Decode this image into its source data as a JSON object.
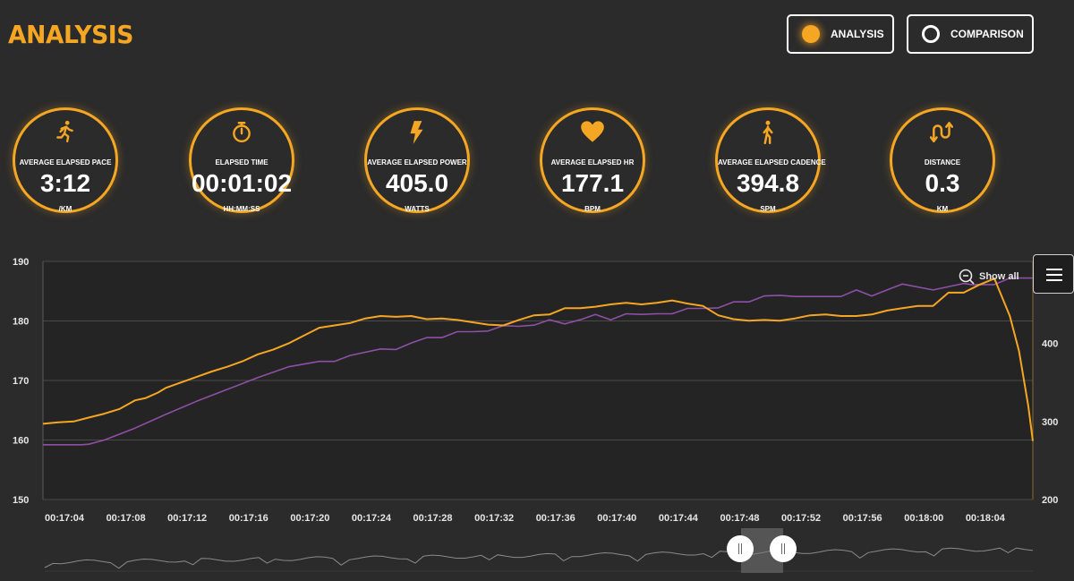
{
  "header": {
    "title": "ANALYSIS",
    "buttons": [
      {
        "label": "ANALYSIS",
        "selected": true
      },
      {
        "label": "COMPARISON",
        "selected": false
      }
    ]
  },
  "stats": [
    {
      "icon": "runner-icon",
      "label": "AVERAGE ELAPSED PACE",
      "value": "3:12",
      "unit": "/KM"
    },
    {
      "icon": "stopwatch-icon",
      "label": "ELAPSED TIME",
      "value": "00:01:02",
      "unit": "HH:MM:SS"
    },
    {
      "icon": "lightning-icon",
      "label": "AVERAGE ELAPSED POWER",
      "value": "405.0",
      "unit": "WATTS"
    },
    {
      "icon": "heart-icon",
      "label": "AVERAGE ELAPSED HR",
      "value": "177.1",
      "unit": "BPM"
    },
    {
      "icon": "walker-icon",
      "label": "AVERAGE ELAPSED CADENCE",
      "value": "394.8",
      "unit": "SPM"
    },
    {
      "icon": "route-icon",
      "label": "DISTANCE",
      "value": "0.3",
      "unit": "KM"
    }
  ],
  "colors": {
    "accent": "#f5a623",
    "hr_series": "#8e4fa6",
    "power_series": "#f5a623",
    "background": "#2b2b2b"
  },
  "chart": {
    "show_all_label": "Show all",
    "menu_icon": "hamburger-icon"
  },
  "chart_data": {
    "type": "line",
    "x_ticks": [
      "00:17:04",
      "00:17:08",
      "00:17:12",
      "00:17:16",
      "00:17:20",
      "00:17:24",
      "00:17:28",
      "00:17:32",
      "00:17:36",
      "00:17:40",
      "00:17:44",
      "00:17:48",
      "00:17:52",
      "00:17:56",
      "00:18:00",
      "00:18:04"
    ],
    "x_range": [
      62.0,
      126.5
    ],
    "y_left": {
      "range": [
        150,
        190
      ],
      "ticks": [
        "150",
        "160",
        "170",
        "180",
        "190"
      ]
    },
    "y_right": {
      "range": [
        200,
        505
      ],
      "ticks": [
        "200",
        "300",
        "400"
      ]
    },
    "grid": true,
    "series": [
      {
        "axis": "left",
        "color": "#8e4fa6",
        "x": [
          62,
          64.5,
          65,
          66,
          68,
          70,
          72,
          74,
          76,
          78,
          80,
          81,
          82,
          84,
          85,
          86,
          87,
          88,
          89,
          90,
          91,
          92,
          93,
          94,
          95,
          96,
          97,
          98,
          99,
          100,
          101,
          102,
          103,
          104,
          105,
          106,
          107,
          108,
          109,
          110,
          111,
          112,
          113,
          114,
          115,
          116,
          117,
          118,
          120,
          122,
          122.5,
          123,
          124,
          125,
          126.5
        ],
        "y": [
          159.2,
          159.2,
          159.3,
          160,
          162,
          164.3,
          166.5,
          168.5,
          170.5,
          172.3,
          173.2,
          173.2,
          174.2,
          175.3,
          175.2,
          176.3,
          177.2,
          177.2,
          178.2,
          178.2,
          178.3,
          179.2,
          179.1,
          179.3,
          180.2,
          179.5,
          180.2,
          181.1,
          180.2,
          181.2,
          181.1,
          181.2,
          181.2,
          182.1,
          182.1,
          182.2,
          183.2,
          183.2,
          184.2,
          184.3,
          184.1,
          184.1,
          184.1,
          184.1,
          185.2,
          184.2,
          185.2,
          186.2,
          185.2,
          186.3,
          186.1,
          186.1,
          186.1,
          187.2,
          187.2
        ]
      },
      {
        "axis": "right",
        "color": "#f5a623",
        "x": [
          62,
          63,
          64,
          65,
          66,
          67,
          68,
          68.7,
          69.5,
          70,
          71,
          72,
          73,
          74,
          75,
          76,
          77,
          78,
          79,
          80,
          81,
          82,
          83,
          84,
          85,
          86,
          87,
          88,
          89,
          90,
          91,
          92,
          93,
          94,
          95,
          96,
          97,
          98,
          99,
          100,
          101,
          102,
          103,
          104,
          105,
          106,
          107,
          108,
          109,
          110,
          111,
          112,
          113,
          114,
          115,
          116,
          117,
          118,
          119,
          120,
          121,
          122,
          123,
          124,
          125,
          125.6,
          126.2,
          126.5
        ],
        "y": [
          297,
          299,
          300,
          305,
          310,
          316,
          327,
          330,
          337,
          343,
          350,
          357,
          364,
          370,
          377,
          386,
          392,
          400,
          410,
          420,
          423,
          426,
          432,
          435,
          434,
          435,
          431,
          432,
          430,
          427,
          424,
          423,
          430,
          436,
          437,
          445,
          445,
          447,
          450,
          452,
          450,
          452,
          455,
          451,
          448,
          436,
          431,
          429,
          430,
          429,
          432,
          436,
          437,
          435,
          435,
          437,
          442,
          445,
          448,
          448,
          465,
          465,
          475,
          483,
          435,
          390,
          320,
          275
        ]
      }
    ],
    "navigator": {
      "window": [
        "00:17:47",
        "00:17:50"
      ]
    }
  }
}
